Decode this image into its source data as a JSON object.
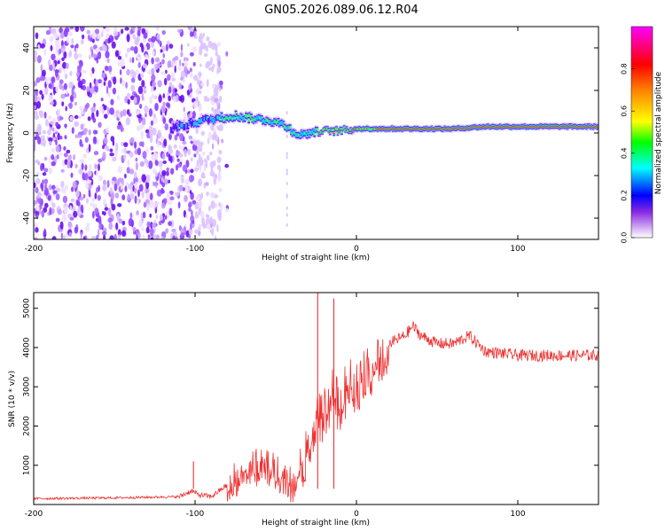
{
  "title": "GN05.2026.089.06.12.R04",
  "chart_data": [
    {
      "type": "heatmap",
      "xlabel": "Height of straight line (km)",
      "ylabel": "Frequency (Hz)",
      "xlim": [
        -200,
        150
      ],
      "ylim": [
        -50,
        50
      ],
      "xticks": [
        -200,
        -100,
        0,
        100
      ],
      "yticks": [
        -40,
        -20,
        0,
        20,
        40
      ],
      "colorbar": {
        "label": "Normalized spectral amplitude",
        "range": [
          0,
          1
        ],
        "ticks": [
          "0.0",
          "0.2",
          "0.4",
          "0.6",
          "0.8"
        ],
        "tick_values": [
          0,
          0.2,
          0.4,
          0.6,
          0.8
        ],
        "colors": [
          "#ffffff",
          "#5a00ff",
          "#0000ff",
          "#00ffff",
          "#00ff00",
          "#ffff00",
          "#ff8000",
          "#ff0000",
          "#ff00ff"
        ]
      },
      "trace": {
        "x": [
          -115,
          -105,
          -95,
          -85,
          -75,
          -65,
          -55,
          -45,
          -40,
          -35,
          -30,
          -20,
          -10,
          0,
          20,
          40,
          60,
          80,
          100,
          120,
          150
        ],
        "y": [
          2,
          4,
          6,
          7,
          8,
          7,
          6,
          4,
          1,
          -1,
          0,
          1,
          1,
          2,
          2,
          2,
          2,
          3,
          3,
          3,
          3
        ]
      }
    },
    {
      "type": "line",
      "xlabel": "Height of straight line (km)",
      "ylabel": "SNR (10 * v/v)",
      "xlim": [
        -200,
        150
      ],
      "ylim": [
        0,
        5400
      ],
      "xticks": [
        -200,
        -100,
        0,
        100
      ],
      "yticks": [
        1000,
        2000,
        3000,
        4000,
        5000
      ],
      "color": "#ee3333",
      "envelope": {
        "x": [
          -200,
          -150,
          -110,
          -102,
          -98,
          -90,
          -80,
          -70,
          -60,
          -50,
          -40,
          -30,
          -25,
          -20,
          -15,
          -10,
          -5,
          0,
          10,
          20,
          30,
          35,
          40,
          50,
          60,
          70,
          80,
          100,
          120,
          150
        ],
        "y": [
          150,
          170,
          200,
          350,
          250,
          200,
          500,
          900,
          1000,
          900,
          500,
          1500,
          2200,
          2400,
          2800,
          2500,
          3200,
          3000,
          3600,
          4100,
          4300,
          4550,
          4300,
          4100,
          4100,
          4300,
          3900,
          3800,
          3800,
          3800
        ]
      },
      "spikes": [
        {
          "x": -101,
          "y": 1100
        },
        {
          "x": -24,
          "y": 5400
        },
        {
          "x": -14,
          "y": 5250
        }
      ]
    }
  ]
}
